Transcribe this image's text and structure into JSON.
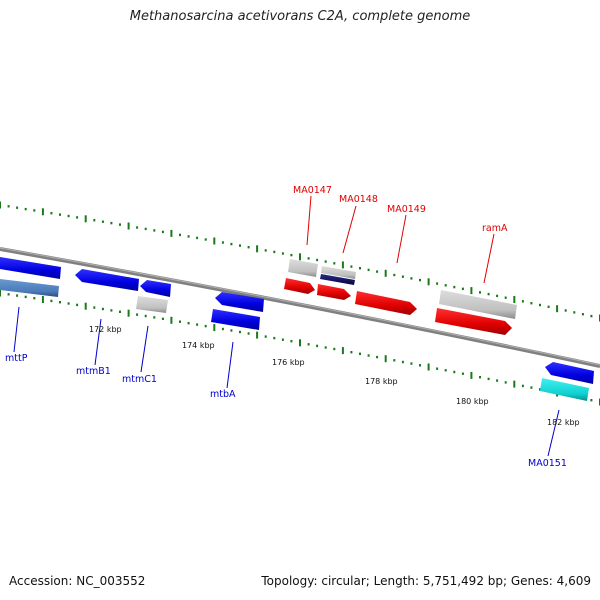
{
  "title": "Methanosarcina acetivorans C2A, complete genome",
  "footer": {
    "accession": "Accession: NC_003552",
    "summary": "Topology: circular; Length: 5,751,492 bp; Genes: 4,609"
  },
  "scale_labels": [
    "172 kbp",
    "174 kbp",
    "176 kbp",
    "178 kbp",
    "180 kbp",
    "182 kbp"
  ],
  "colors": {
    "forward_gene": "#ff0000",
    "reverse_gene": "#0000ee",
    "other_gene": "#c0c0c0",
    "tick": "#1a7a1a",
    "backbone": "#808080"
  },
  "genes_forward": [
    {
      "label": "MA0147",
      "color": "#ff0000"
    },
    {
      "label": "MA0148",
      "color": "#ff0000"
    },
    {
      "label": "MA0149",
      "color": "#ff0000"
    },
    {
      "label": "ramA",
      "color": "#ff0000"
    }
  ],
  "genes_reverse": [
    {
      "label": "mttP",
      "color": "#0000ee"
    },
    {
      "label": "mtmB1",
      "color": "#0000ee"
    },
    {
      "label": "mtmC1",
      "color": "#0000ee"
    },
    {
      "label": "mtbA",
      "color": "#0000ee"
    },
    {
      "label": "MA0151",
      "color": "#0000ee"
    }
  ]
}
